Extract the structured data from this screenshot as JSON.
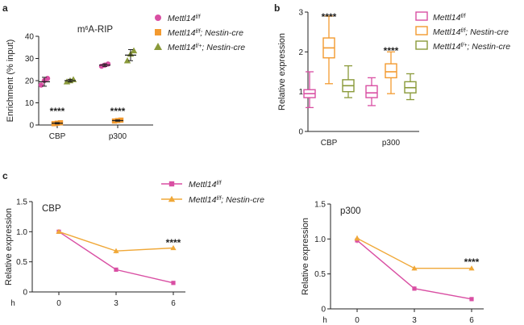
{
  "chart_data": [
    {
      "panel": "a",
      "type": "scatter",
      "title_main": "m",
      "title_sup": "6",
      "title_rest": "A-RIP",
      "ylabel": "Enrichment (% input)",
      "xlabel": "",
      "ylim": [
        0,
        40
      ],
      "yticks": [
        "0",
        "10",
        "20",
        "30",
        "40"
      ],
      "categories": [
        "CBP",
        "p300"
      ],
      "legend_position": "top-right",
      "series": [
        {
          "name": "Mettl14",
          "name_sup": "f/f",
          "name_rest": "",
          "color": "#d94fa3",
          "marker": "circle",
          "means": [
            19.5,
            27.0
          ],
          "points": [
            [
              18,
              20,
              21
            ],
            [
              26.5,
              27,
              27.5
            ]
          ],
          "errors": [
            2.0,
            0.6
          ]
        },
        {
          "name": "Mettl14",
          "name_sup": "f/f",
          "name_rest": "; Nestin-cre",
          "color": "#f39a2f",
          "marker": "square",
          "means": [
            0.8,
            2.0
          ],
          "points": [
            [
              0.6,
              0.8,
              1.0
            ],
            [
              1.8,
              2.0,
              2.2
            ]
          ],
          "errors": [
            0.3,
            0.3
          ]
        },
        {
          "name": "Mettl14",
          "name_sup": "f/+",
          "name_rest": "; Nestin-cre",
          "color": "#8a9a3a",
          "marker": "triangle",
          "means": [
            20.0,
            31.5
          ],
          "points": [
            [
              19.5,
              20,
              20.5
            ],
            [
              29,
              32,
              33.5
            ]
          ],
          "errors": [
            0.6,
            2.5
          ]
        }
      ],
      "annotations": [
        {
          "category": "CBP",
          "y": 6.5,
          "text": "****"
        },
        {
          "category": "p300",
          "y": 6.5,
          "text": "****"
        }
      ]
    },
    {
      "panel": "b",
      "type": "box",
      "ylabel": "Relative expression",
      "ylim": [
        0,
        3
      ],
      "yticks": [
        "0",
        "1",
        "2",
        "3"
      ],
      "categories": [
        "CBP",
        "p300"
      ],
      "legend_position": "top-right",
      "series": [
        {
          "name": "Mettl14",
          "name_sup": "f/f",
          "name_rest": "",
          "color": "#d94fa3",
          "boxes": [
            {
              "min": 0.6,
              "q1": 0.85,
              "median": 0.95,
              "q3": 1.05,
              "max": 1.5
            },
            {
              "min": 0.65,
              "q1": 0.85,
              "median": 0.97,
              "q3": 1.15,
              "max": 1.35
            }
          ]
        },
        {
          "name": "Mettl14",
          "name_sup": "f/f",
          "name_rest": "; Nestin-cre",
          "color": "#f39a2f",
          "boxes": [
            {
              "min": 1.2,
              "q1": 1.85,
              "median": 2.1,
              "q3": 2.35,
              "max": 2.9
            },
            {
              "min": 0.95,
              "q1": 1.35,
              "median": 1.5,
              "q3": 1.7,
              "max": 2.0
            }
          ]
        },
        {
          "name": "Mettl14",
          "name_sup": "f/+",
          "name_rest": "; Nestin-cre",
          "color": "#8a9a3a",
          "boxes": [
            {
              "min": 0.85,
              "q1": 1.0,
              "median": 1.15,
              "q3": 1.3,
              "max": 1.65
            },
            {
              "min": 0.8,
              "q1": 0.97,
              "median": 1.1,
              "q3": 1.25,
              "max": 1.45
            }
          ]
        }
      ],
      "annotations": [
        {
          "category": "CBP",
          "y": 2.9,
          "text": "****"
        },
        {
          "category": "p300",
          "y": 2.05,
          "text": "****"
        }
      ]
    },
    {
      "panel": "c",
      "type": "line",
      "title": "CBP",
      "ylabel": "Relative expression",
      "xlabel": "h",
      "x": [
        0,
        3,
        6
      ],
      "xticks": [
        "0",
        "3",
        "6"
      ],
      "ylim": [
        0,
        1.5
      ],
      "yticks": [
        "0",
        "0.5",
        "1.0",
        "1.5"
      ],
      "legend_position": "top",
      "series": [
        {
          "name": "Mettl14",
          "name_sup": "f/f",
          "name_rest": "",
          "color": "#d94fa3",
          "marker": "square",
          "values": [
            1.0,
            0.37,
            0.15
          ],
          "errors": [
            0.03,
            0.02,
            0.02
          ]
        },
        {
          "name": "Mettl14",
          "name_sup": "f/f",
          "name_rest": "; Nestin-cre",
          "color": "#f0a838",
          "marker": "triangle",
          "values": [
            1.0,
            0.68,
            0.73
          ],
          "errors": [
            0.03,
            0.04,
            0.02
          ]
        }
      ],
      "annotations": [
        {
          "x": 6,
          "y": 0.83,
          "text": "****"
        }
      ]
    },
    {
      "panel": "c",
      "type": "line",
      "title": "p300",
      "ylabel": "Relative expression",
      "xlabel": "h",
      "x": [
        0,
        3,
        6
      ],
      "xticks": [
        "0",
        "3",
        "6"
      ],
      "ylim": [
        0,
        1.5
      ],
      "yticks": [
        "0",
        "0.5",
        "1.0",
        "1.5"
      ],
      "series": [
        {
          "name": "Mettl14",
          "name_sup": "f/f",
          "name_rest": "",
          "color": "#d94fa3",
          "marker": "square",
          "values": [
            0.98,
            0.29,
            0.14
          ],
          "errors": [
            0.04,
            0.03,
            0.01
          ]
        },
        {
          "name": "Mettl14",
          "name_sup": "f/f",
          "name_rest": "; Nestin-cre",
          "color": "#f0a838",
          "marker": "triangle",
          "values": [
            1.01,
            0.58,
            0.58
          ],
          "errors": [
            0.04,
            0.03,
            0.02
          ]
        }
      ],
      "annotations": [
        {
          "x": 6,
          "y": 0.68,
          "text": "****"
        }
      ]
    }
  ]
}
